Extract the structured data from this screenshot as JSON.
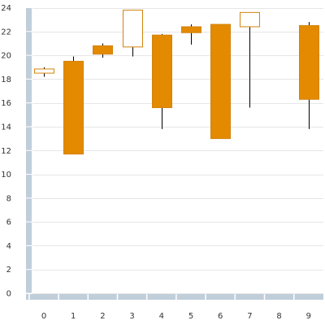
{
  "chart_data": {
    "type": "candlestick",
    "x": [
      "0",
      "1",
      "2",
      "3",
      "4",
      "5",
      "6",
      "7",
      "8",
      "9"
    ],
    "ylim": [
      0,
      24
    ],
    "yticks": [
      "0",
      "2",
      "4",
      "6",
      "8",
      "10",
      "12",
      "14",
      "16",
      "18",
      "20",
      "22",
      "24"
    ],
    "grid": true,
    "candles": [
      {
        "x": "0",
        "open": 18.5,
        "close": 18.85,
        "high": 19.0,
        "low": 18.2
      },
      {
        "x": "1",
        "open": 19.5,
        "close": 11.7,
        "high": 19.9,
        "low": 11.7
      },
      {
        "x": "2",
        "open": 20.8,
        "close": 20.1,
        "high": 21.0,
        "low": 19.8
      },
      {
        "x": "3",
        "open": 20.7,
        "close": 23.8,
        "high": 23.8,
        "low": 19.9
      },
      {
        "x": "4",
        "open": 21.7,
        "close": 15.6,
        "high": 21.8,
        "low": 13.8
      },
      {
        "x": "5",
        "open": 22.4,
        "close": 21.9,
        "high": 22.6,
        "low": 20.9
      },
      {
        "x": "6",
        "open": 22.6,
        "close": 13.0,
        "high": 22.6,
        "low": 13.0
      },
      {
        "x": "7",
        "open": 22.4,
        "close": 23.6,
        "high": 23.6,
        "low": 15.6
      },
      {
        "x": "9",
        "open": 22.5,
        "close": 16.3,
        "high": 22.8,
        "low": 13.8
      }
    ]
  },
  "colors": {
    "down_fill": "#e38a00",
    "up_fill": "#ffffff",
    "body_stroke": "#d4830d",
    "wick": "#000000",
    "axis_bar": "#c0ceda",
    "grid": "#e6e6e6",
    "tick_text": "#333333"
  }
}
